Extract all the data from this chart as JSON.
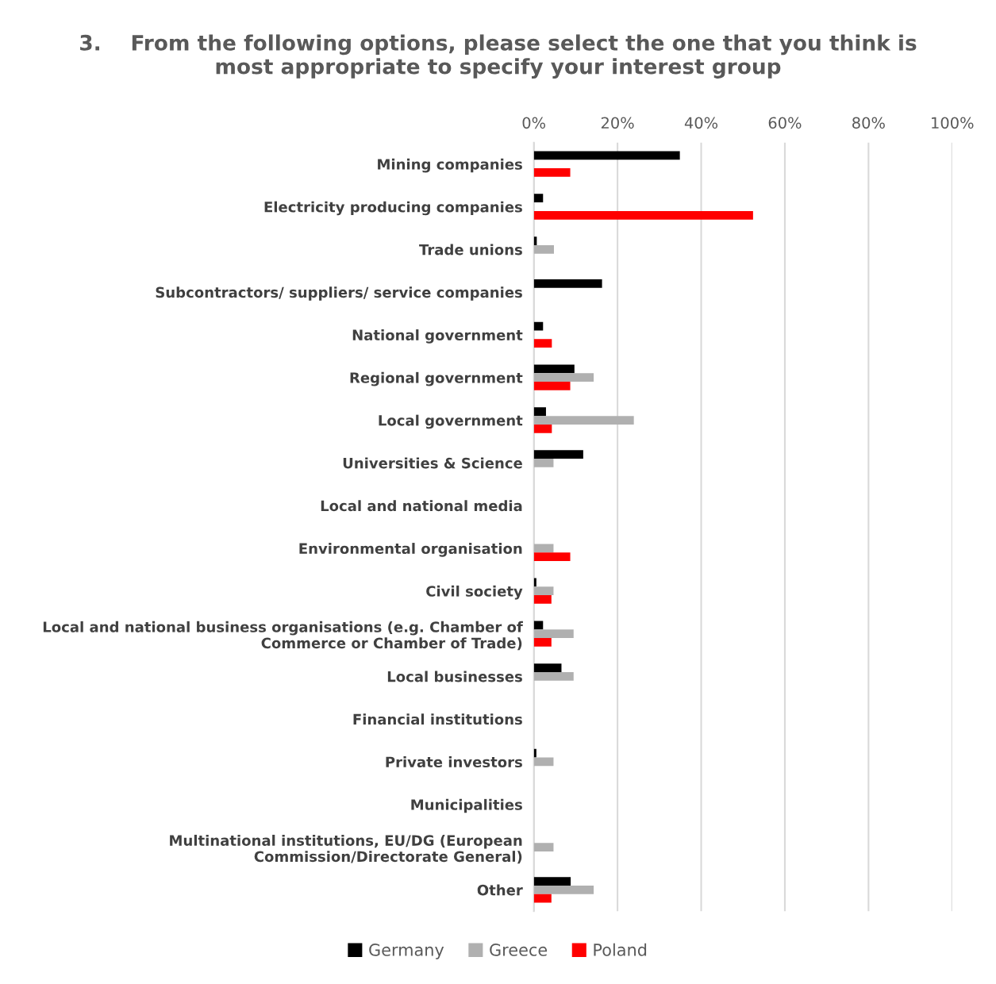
{
  "chart_data": {
    "type": "bar",
    "orientation": "horizontal",
    "title": "3.    From the following options, please select the one that you think is\nmost appropriate to specify your interest group",
    "categories": [
      "Mining companies",
      "Electricity producing companies",
      "Trade unions",
      "Subcontractors/ suppliers/ service companies",
      "National government",
      "Regional government",
      "Local government",
      "Universities & Science",
      "Local and national media",
      "Environmental organisation",
      "Civil society",
      "Local and national business organisations (e.g. Chamber of\nCommerce or Chamber of Trade)",
      "Local businesses",
      "Financial institutions",
      "Private investors",
      "Municipalities",
      "Multinational institutions, EU/DG (European\nCommission/Directorate General)",
      "Other"
    ],
    "series": [
      {
        "name": "Germany",
        "color": "#000000",
        "values": [
          34.9,
          2.2,
          0.7,
          16.3,
          2.2,
          9.7,
          2.9,
          11.8,
          null,
          null,
          0.6,
          2.2,
          6.6,
          null,
          0.6,
          null,
          null,
          8.8
        ]
      },
      {
        "name": "Greece",
        "color": "#b0b0b0",
        "values": [
          null,
          null,
          4.8,
          null,
          null,
          14.3,
          23.9,
          4.7,
          null,
          4.7,
          4.7,
          9.5,
          9.5,
          null,
          4.7,
          null,
          4.7,
          14.3
        ]
      },
      {
        "name": "Poland",
        "color": "#ff0000",
        "values": [
          8.7,
          52.4,
          null,
          null,
          4.3,
          8.7,
          4.3,
          null,
          null,
          8.7,
          4.2,
          4.2,
          null,
          null,
          null,
          null,
          null,
          4.2
        ]
      }
    ],
    "xlim": [
      0,
      100
    ],
    "xticks": [
      {
        "value": 0,
        "label": "0%"
      },
      {
        "value": 20,
        "label": "20%"
      },
      {
        "value": 40,
        "label": "40%"
      },
      {
        "value": 60,
        "label": "60%"
      },
      {
        "value": 80,
        "label": "80%"
      },
      {
        "value": 100,
        "label": "100%"
      }
    ],
    "grid": "x",
    "legend": "bottom"
  }
}
